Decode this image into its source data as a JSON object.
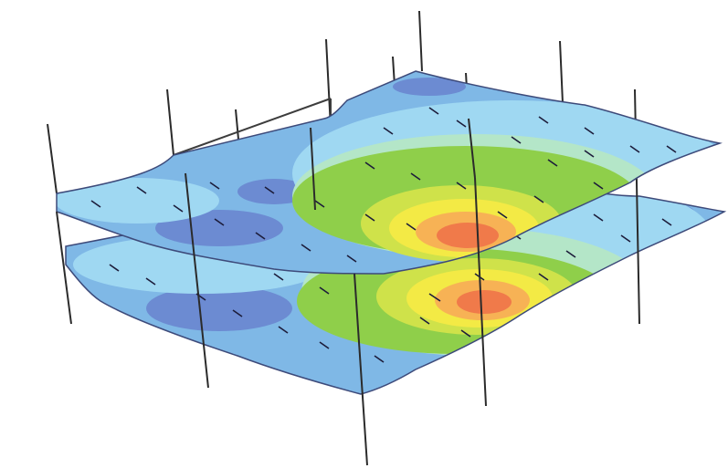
{
  "figure": {
    "description_text": "",
    "colors": {
      "background": "#ffffff",
      "band_1": "#6c8bd2",
      "band_2": "#7fb8e6",
      "band_3": "#9fd8f2",
      "band_4": "#b4e6c8",
      "band_5": "#8fcf4a",
      "band_6": "#cfe24a",
      "band_7": "#f3ea45",
      "band_8": "#f7b255",
      "band_9": "#f07a4a",
      "edge": "#3d4a7a",
      "column": "#2b2b2b",
      "mesh_tick": "#1c1c3a"
    },
    "levels": [
      {
        "name": "upper-slab"
      },
      {
        "name": "lower-slab"
      }
    ]
  }
}
